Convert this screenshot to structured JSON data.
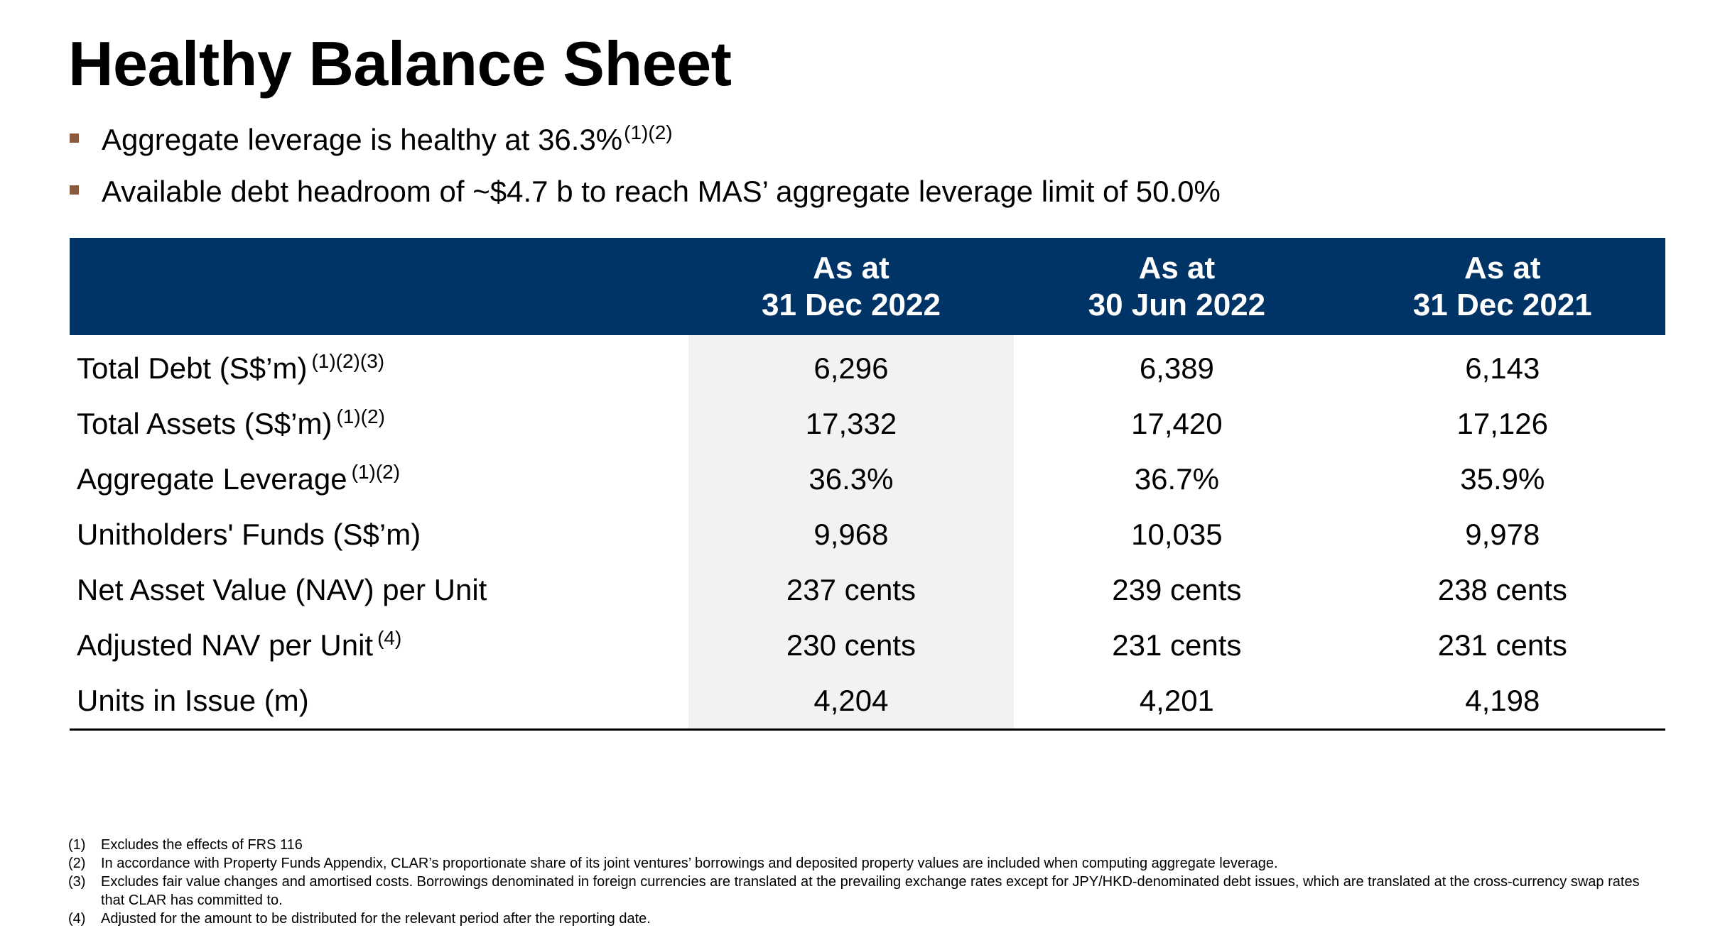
{
  "title": "Healthy Balance Sheet",
  "bullets": [
    {
      "text": "Aggregate leverage is healthy at 36.3%",
      "sup": "(1)(2)"
    },
    {
      "text": "Available debt headroom of ~$4.7 b to reach MAS’ aggregate leverage limit of 50.0%",
      "sup": ""
    }
  ],
  "colors": {
    "header_bg": "#003366",
    "highlight_col": "#f2f2f2",
    "bullet_marker": "#8b5a3c"
  },
  "table": {
    "headers": [
      {
        "line1": "As at",
        "line2": "31 Dec 2022"
      },
      {
        "line1": "As at",
        "line2": "30 Jun 2022"
      },
      {
        "line1": "As at",
        "line2": "31 Dec 2021"
      }
    ],
    "rows": [
      {
        "label": "Total Debt (S$’m)",
        "sup": "(1)(2)(3)",
        "values": [
          "6,296",
          "6,389",
          "6,143"
        ]
      },
      {
        "label": "Total Assets (S$’m)",
        "sup": "(1)(2)",
        "values": [
          "17,332",
          "17,420",
          "17,126"
        ]
      },
      {
        "label": "Aggregate Leverage",
        "sup": "(1)(2)",
        "values": [
          "36.3%",
          "36.7%",
          "35.9%"
        ]
      },
      {
        "label": "Unitholders' Funds (S$’m)",
        "sup": "",
        "values": [
          "9,968",
          "10,035",
          "9,978"
        ]
      },
      {
        "label": "Net Asset Value (NAV) per Unit",
        "sup": "",
        "values": [
          "237 cents",
          "239 cents",
          "238 cents"
        ]
      },
      {
        "label": "Adjusted NAV per Unit",
        "sup": "(4)",
        "values": [
          "230 cents",
          "231 cents",
          "231 cents"
        ]
      },
      {
        "label": "Units in Issue (m)",
        "sup": "",
        "values": [
          "4,204",
          "4,201",
          "4,198"
        ]
      }
    ]
  },
  "footnotes": [
    {
      "num": "(1)",
      "text": "Excludes the effects of FRS 116"
    },
    {
      "num": "(2)",
      "text": "In accordance with Property Funds Appendix, CLAR’s proportionate share of its joint ventures’ borrowings and deposited property values are included when computing aggregate leverage."
    },
    {
      "num": "(3)",
      "text": "Excludes fair value changes and amortised costs. Borrowings denominated in foreign currencies are translated at the prevailing exchange rates except for JPY/HKD-denominated debt issues, which are translated at the cross-currency swap rates that CLAR has committed to."
    },
    {
      "num": "(4)",
      "text": "Adjusted for the amount to be distributed for the relevant period after the reporting date."
    }
  ]
}
